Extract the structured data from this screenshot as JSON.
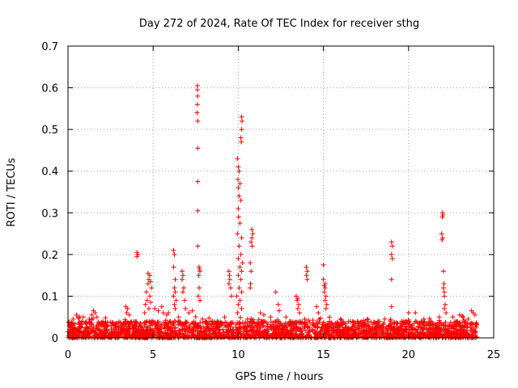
{
  "chart_data": {
    "type": "scatter",
    "title": "Day 272 of 2024, Rate Of TEC Index for receiver sthg",
    "xlabel": "GPS time / hours",
    "ylabel": "ROTI / TECUs",
    "xlim": [
      0,
      25
    ],
    "ylim": [
      0,
      0.7
    ],
    "xticks": [
      0,
      5,
      10,
      15,
      20,
      25
    ],
    "yticks": [
      0,
      0.1,
      0.2,
      0.3,
      0.4,
      0.5,
      0.6,
      0.7
    ],
    "xtick_labels": [
      "0",
      "5",
      "10",
      "15",
      "20",
      "25"
    ],
    "ytick_labels": [
      "0",
      "0.1",
      "0.2",
      "0.3",
      "0.4",
      "0.5",
      "0.6",
      "0.7"
    ],
    "grid": true,
    "marker": "+",
    "marker_color": "#ff0000",
    "x_range_of_observations": [
      0,
      24
    ],
    "baseline_roti_range": [
      0.0,
      0.04
    ],
    "series": [
      {
        "name": "ROTI",
        "points": [
          [
            7.6,
            0.605
          ],
          [
            7.6,
            0.595
          ],
          [
            7.62,
            0.58
          ],
          [
            7.6,
            0.56
          ],
          [
            7.58,
            0.54
          ],
          [
            7.62,
            0.52
          ],
          [
            7.62,
            0.455
          ],
          [
            7.62,
            0.375
          ],
          [
            7.62,
            0.305
          ],
          [
            7.62,
            0.22
          ],
          [
            7.7,
            0.17
          ],
          [
            7.72,
            0.165
          ],
          [
            7.75,
            0.16
          ],
          [
            7.68,
            0.15
          ],
          [
            7.7,
            0.12
          ],
          [
            7.65,
            0.1
          ],
          [
            7.75,
            0.09
          ],
          [
            10.2,
            0.53
          ],
          [
            10.22,
            0.52
          ],
          [
            10.2,
            0.5
          ],
          [
            10.15,
            0.48
          ],
          [
            10.18,
            0.47
          ],
          [
            9.95,
            0.43
          ],
          [
            10.0,
            0.41
          ],
          [
            10.05,
            0.4
          ],
          [
            9.98,
            0.38
          ],
          [
            10.1,
            0.37
          ],
          [
            10.0,
            0.36
          ],
          [
            10.05,
            0.34
          ],
          [
            10.15,
            0.33
          ],
          [
            10.0,
            0.31
          ],
          [
            10.02,
            0.29
          ],
          [
            10.1,
            0.275
          ],
          [
            9.95,
            0.25
          ],
          [
            10.2,
            0.24
          ],
          [
            10.05,
            0.22
          ],
          [
            10.15,
            0.2
          ],
          [
            10.0,
            0.19
          ],
          [
            10.25,
            0.18
          ],
          [
            10.1,
            0.17
          ],
          [
            10.2,
            0.16
          ],
          [
            10.0,
            0.15
          ],
          [
            10.15,
            0.14
          ],
          [
            10.05,
            0.12
          ],
          [
            10.2,
            0.11
          ],
          [
            9.9,
            0.1
          ],
          [
            10.1,
            0.09
          ],
          [
            10.0,
            0.08
          ],
          [
            10.2,
            0.07
          ],
          [
            9.95,
            0.06
          ],
          [
            10.8,
            0.26
          ],
          [
            10.85,
            0.25
          ],
          [
            10.8,
            0.24
          ],
          [
            10.75,
            0.23
          ],
          [
            10.82,
            0.22
          ],
          [
            10.7,
            0.18
          ],
          [
            10.75,
            0.16
          ],
          [
            10.72,
            0.13
          ],
          [
            10.7,
            0.12
          ],
          [
            9.45,
            0.16
          ],
          [
            9.48,
            0.15
          ],
          [
            9.5,
            0.14
          ],
          [
            9.45,
            0.13
          ],
          [
            9.55,
            0.12
          ],
          [
            9.6,
            0.1
          ],
          [
            22.0,
            0.3
          ],
          [
            22.02,
            0.295
          ],
          [
            21.98,
            0.29
          ],
          [
            21.95,
            0.25
          ],
          [
            22.0,
            0.24
          ],
          [
            21.97,
            0.235
          ],
          [
            22.05,
            0.16
          ],
          [
            22.08,
            0.13
          ],
          [
            22.05,
            0.12
          ],
          [
            22.1,
            0.11
          ],
          [
            22.1,
            0.1
          ],
          [
            22.15,
            0.08
          ],
          [
            22.1,
            0.07
          ],
          [
            22.2,
            0.06
          ],
          [
            19.0,
            0.23
          ],
          [
            19.05,
            0.22
          ],
          [
            19.0,
            0.2
          ],
          [
            19.05,
            0.19
          ],
          [
            19.0,
            0.14
          ],
          [
            19.0,
            0.075
          ],
          [
            4.05,
            0.205
          ],
          [
            4.1,
            0.2
          ],
          [
            4.05,
            0.195
          ],
          [
            6.2,
            0.21
          ],
          [
            6.25,
            0.2
          ],
          [
            6.2,
            0.17
          ],
          [
            6.3,
            0.14
          ],
          [
            6.25,
            0.12
          ],
          [
            6.3,
            0.11
          ],
          [
            6.2,
            0.1
          ],
          [
            6.35,
            0.09
          ],
          [
            6.25,
            0.08
          ],
          [
            6.3,
            0.07
          ],
          [
            5.9,
            0.06
          ],
          [
            6.7,
            0.16
          ],
          [
            6.75,
            0.15
          ],
          [
            6.7,
            0.14
          ],
          [
            6.8,
            0.12
          ],
          [
            6.75,
            0.11
          ],
          [
            6.85,
            0.09
          ],
          [
            6.9,
            0.07
          ],
          [
            4.7,
            0.155
          ],
          [
            4.8,
            0.15
          ],
          [
            4.75,
            0.14
          ],
          [
            4.85,
            0.135
          ],
          [
            4.7,
            0.13
          ],
          [
            4.9,
            0.12
          ],
          [
            4.6,
            0.11
          ],
          [
            4.8,
            0.1
          ],
          [
            4.65,
            0.09
          ],
          [
            4.85,
            0.085
          ],
          [
            4.55,
            0.08
          ],
          [
            4.75,
            0.07
          ],
          [
            4.5,
            0.06
          ],
          [
            14.0,
            0.17
          ],
          [
            14.05,
            0.16
          ],
          [
            14.0,
            0.15
          ],
          [
            14.05,
            0.14
          ],
          [
            15.0,
            0.175
          ],
          [
            15.0,
            0.14
          ],
          [
            15.1,
            0.13
          ],
          [
            15.05,
            0.125
          ],
          [
            15.1,
            0.12
          ],
          [
            15.05,
            0.11
          ],
          [
            15.15,
            0.1
          ],
          [
            15.1,
            0.09
          ],
          [
            15.2,
            0.08
          ],
          [
            15.15,
            0.07
          ],
          [
            13.4,
            0.1
          ],
          [
            13.5,
            0.095
          ],
          [
            13.45,
            0.09
          ],
          [
            13.55,
            0.08
          ],
          [
            13.5,
            0.07
          ],
          [
            13.6,
            0.06
          ],
          [
            12.2,
            0.11
          ],
          [
            12.35,
            0.08
          ],
          [
            12.4,
            0.065
          ],
          [
            14.6,
            0.075
          ],
          [
            14.7,
            0.06
          ],
          [
            11.3,
            0.06
          ],
          [
            11.5,
            0.055
          ],
          [
            11.9,
            0.05
          ],
          [
            12.8,
            0.05
          ],
          [
            13.9,
            0.045
          ],
          [
            3.4,
            0.075
          ],
          [
            3.5,
            0.07
          ],
          [
            3.45,
            0.06
          ],
          [
            3.6,
            0.055
          ],
          [
            1.5,
            0.065
          ],
          [
            1.6,
            0.06
          ],
          [
            1.4,
            0.055
          ],
          [
            1.7,
            0.05
          ],
          [
            0.5,
            0.055
          ],
          [
            0.6,
            0.05
          ],
          [
            0.7,
            0.05
          ],
          [
            0.9,
            0.05
          ],
          [
            0.3,
            0.045
          ],
          [
            5.1,
            0.07
          ],
          [
            5.3,
            0.065
          ],
          [
            5.5,
            0.075
          ],
          [
            5.6,
            0.06
          ],
          [
            5.8,
            0.055
          ],
          [
            6.5,
            0.05
          ],
          [
            7.1,
            0.06
          ],
          [
            7.3,
            0.065
          ],
          [
            7.9,
            0.045
          ],
          [
            8.4,
            0.04
          ],
          [
            8.8,
            0.035
          ],
          [
            9.2,
            0.05
          ],
          [
            16.0,
            0.045
          ],
          [
            17.0,
            0.04
          ],
          [
            17.6,
            0.045
          ],
          [
            18.2,
            0.04
          ],
          [
            18.6,
            0.045
          ],
          [
            19.6,
            0.04
          ],
          [
            20.0,
            0.06
          ],
          [
            20.4,
            0.06
          ],
          [
            20.9,
            0.045
          ],
          [
            21.3,
            0.04
          ],
          [
            21.8,
            0.05
          ],
          [
            22.6,
            0.05
          ],
          [
            23.0,
            0.055
          ],
          [
            23.2,
            0.05
          ],
          [
            23.5,
            0.045
          ],
          [
            23.7,
            0.065
          ],
          [
            23.8,
            0.06
          ],
          [
            23.9,
            0.055
          ],
          [
            0.0,
            0.015
          ],
          [
            0.1,
            0.01
          ],
          [
            0.2,
            0.02
          ]
        ]
      }
    ]
  }
}
